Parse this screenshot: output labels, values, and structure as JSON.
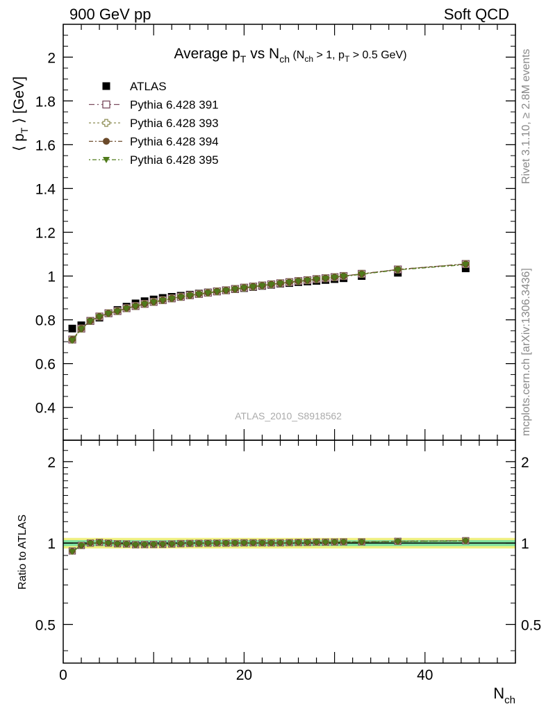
{
  "header": {
    "left": "900 GeV pp",
    "right": "Soft QCD"
  },
  "side_labels": {
    "rivet": "Rivet 3.1.10, ≥ 2.8M events",
    "mcplots": "mcplots.cern.ch [arXiv:1306.3436]"
  },
  "chart_data": [
    {
      "type": "scatter",
      "panel": "main",
      "title": {
        "main": "Average p",
        "main_sub": "T",
        "mid": " vs N",
        "mid_sub": "ch",
        "cond_open": " (N",
        "cond_sub1": "ch",
        "cond_mid": " > 1, p",
        "cond_sub2": "T",
        "cond_close": " > 0.5 GeV)"
      },
      "ylabel": {
        "open": "⟨ p",
        "sub": "T",
        "close": " ⟩  [GeV]"
      },
      "watermark": "ATLAS_2010_S8918562",
      "xlim": [
        0,
        50
      ],
      "ylim": [
        0.25,
        2.15
      ],
      "yticks": [
        0.4,
        0.6,
        0.8,
        1.0,
        1.2,
        1.4,
        1.6,
        1.8,
        2.0
      ],
      "ytick_labels": [
        "0.4",
        "0.6",
        "0.8",
        "1",
        "1.2",
        "1.4",
        "1.6",
        "1.8",
        "2"
      ],
      "legend": [
        {
          "key": "atlas",
          "label": "ATLAS"
        },
        {
          "key": "p391",
          "label": "Pythia 6.428 391"
        },
        {
          "key": "p393",
          "label": "Pythia 6.428 393"
        },
        {
          "key": "p394",
          "label": "Pythia 6.428 394"
        },
        {
          "key": "p395",
          "label": "Pythia 6.428 395"
        }
      ],
      "x": [
        1,
        2,
        3,
        4,
        5,
        6,
        7,
        8,
        9,
        10,
        11,
        12,
        13,
        14,
        15,
        16,
        17,
        18,
        19,
        20,
        21,
        22,
        23,
        24,
        25,
        26,
        27,
        28,
        29,
        30,
        31,
        33,
        37,
        44.5
      ],
      "series": [
        {
          "key": "atlas",
          "style": {
            "marker": "filled-square",
            "color": "#000000"
          },
          "values": [
            0.76,
            0.775,
            0.795,
            0.81,
            0.83,
            0.845,
            0.86,
            0.875,
            0.885,
            0.893,
            0.9,
            0.905,
            0.91,
            0.915,
            0.92,
            0.925,
            0.93,
            0.935,
            0.94,
            0.945,
            0.95,
            0.955,
            0.96,
            0.965,
            0.968,
            0.972,
            0.975,
            0.978,
            0.982,
            0.986,
            0.99,
            1.0,
            1.015,
            1.035
          ]
        },
        {
          "key": "p391",
          "style": {
            "marker": "open-square",
            "color": "#7a4a5e"
          },
          "values": [
            0.71,
            0.76,
            0.795,
            0.815,
            0.83,
            0.84,
            0.853,
            0.863,
            0.873,
            0.882,
            0.89,
            0.898,
            0.905,
            0.912,
            0.918,
            0.924,
            0.93,
            0.935,
            0.941,
            0.947,
            0.952,
            0.957,
            0.962,
            0.967,
            0.972,
            0.977,
            0.981,
            0.986,
            0.99,
            0.995,
            1.0,
            1.01,
            1.03,
            1.055
          ]
        },
        {
          "key": "p393",
          "style": {
            "marker": "open-cross",
            "color": "#8a8a50"
          },
          "values": [
            0.71,
            0.76,
            0.795,
            0.815,
            0.83,
            0.84,
            0.853,
            0.863,
            0.873,
            0.882,
            0.89,
            0.898,
            0.905,
            0.912,
            0.918,
            0.924,
            0.93,
            0.935,
            0.941,
            0.947,
            0.952,
            0.957,
            0.962,
            0.967,
            0.972,
            0.977,
            0.981,
            0.986,
            0.99,
            0.995,
            1.0,
            1.01,
            1.03,
            1.055
          ]
        },
        {
          "key": "p394",
          "style": {
            "marker": "filled-circle",
            "color": "#6b4a2a"
          },
          "values": [
            0.71,
            0.76,
            0.795,
            0.815,
            0.83,
            0.84,
            0.853,
            0.863,
            0.873,
            0.882,
            0.89,
            0.898,
            0.905,
            0.912,
            0.918,
            0.924,
            0.93,
            0.935,
            0.941,
            0.947,
            0.952,
            0.957,
            0.962,
            0.967,
            0.972,
            0.977,
            0.981,
            0.986,
            0.99,
            0.995,
            1.0,
            1.01,
            1.03,
            1.055
          ]
        },
        {
          "key": "p395",
          "style": {
            "marker": "filled-triangle-down",
            "color": "#4f7a1a"
          },
          "values": [
            0.705,
            0.758,
            0.793,
            0.813,
            0.828,
            0.838,
            0.851,
            0.861,
            0.871,
            0.88,
            0.888,
            0.896,
            0.903,
            0.91,
            0.916,
            0.922,
            0.928,
            0.933,
            0.939,
            0.945,
            0.95,
            0.955,
            0.96,
            0.965,
            0.97,
            0.975,
            0.979,
            0.984,
            0.988,
            0.993,
            0.998,
            1.008,
            1.028,
            1.052
          ]
        }
      ]
    },
    {
      "type": "scatter",
      "panel": "ratio",
      "ylabel": "Ratio to ATLAS",
      "xlabel": {
        "main": "N",
        "sub": "ch"
      },
      "xlim": [
        0,
        50
      ],
      "ylim": [
        0.36,
        2.4
      ],
      "yscale": "log",
      "yticks": [
        0.5,
        1,
        2
      ],
      "ytick_labels": [
        "0.5",
        "1",
        "2"
      ],
      "xticks": [
        0,
        20,
        40
      ],
      "xtick_labels": [
        "0",
        "20",
        "40"
      ],
      "band_inner_color": "#7fe0a0",
      "band_outer_color": "#f0f080",
      "band_outer": [
        [
          0,
          50,
          0.955,
          1.045
        ]
      ],
      "band_inner": [
        [
          0,
          50,
          0.975,
          1.025
        ]
      ],
      "x": [
        1,
        2,
        3,
        4,
        5,
        6,
        7,
        8,
        9,
        10,
        11,
        12,
        13,
        14,
        15,
        16,
        17,
        18,
        19,
        20,
        21,
        22,
        23,
        24,
        25,
        26,
        27,
        28,
        29,
        30,
        31,
        33,
        37,
        44.5
      ],
      "series": [
        {
          "key": "p391",
          "values": [
            0.935,
            0.98,
            1.0,
            1.006,
            1.0,
            0.994,
            0.992,
            0.986,
            0.987,
            0.988,
            0.989,
            0.992,
            0.995,
            0.997,
            0.998,
            0.999,
            1.0,
            1.0,
            1.001,
            1.002,
            1.002,
            1.002,
            1.002,
            1.002,
            1.004,
            1.005,
            1.006,
            1.008,
            1.008,
            1.009,
            1.01,
            1.01,
            1.015,
            1.02
          ]
        },
        {
          "key": "p393",
          "values": [
            0.935,
            0.98,
            1.0,
            1.006,
            1.0,
            0.994,
            0.992,
            0.986,
            0.987,
            0.988,
            0.989,
            0.992,
            0.995,
            0.997,
            0.998,
            0.999,
            1.0,
            1.0,
            1.001,
            1.002,
            1.002,
            1.002,
            1.002,
            1.002,
            1.004,
            1.005,
            1.006,
            1.008,
            1.008,
            1.009,
            1.01,
            1.01,
            1.015,
            1.02
          ]
        },
        {
          "key": "p394",
          "values": [
            0.935,
            0.98,
            1.0,
            1.006,
            1.0,
            0.994,
            0.992,
            0.986,
            0.987,
            0.988,
            0.989,
            0.992,
            0.995,
            0.997,
            0.998,
            0.999,
            1.0,
            1.0,
            1.001,
            1.002,
            1.002,
            1.002,
            1.002,
            1.002,
            1.004,
            1.005,
            1.006,
            1.008,
            1.008,
            1.009,
            1.01,
            1.01,
            1.015,
            1.02
          ]
        },
        {
          "key": "p395",
          "values": [
            0.928,
            0.978,
            0.998,
            1.004,
            0.998,
            0.992,
            0.99,
            0.984,
            0.985,
            0.986,
            0.987,
            0.99,
            0.993,
            0.995,
            0.996,
            0.997,
            0.998,
            0.998,
            0.999,
            1.0,
            1.0,
            1.0,
            1.0,
            1.0,
            1.002,
            1.003,
            1.004,
            1.006,
            1.006,
            1.007,
            1.008,
            1.008,
            1.013,
            1.018
          ]
        }
      ]
    }
  ]
}
